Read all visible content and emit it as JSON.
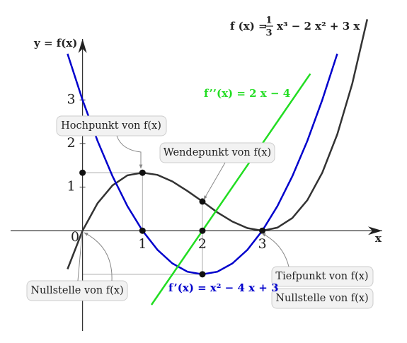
{
  "chart_data": {
    "type": "line",
    "xlabel": "x",
    "ylabel": "y = f(x)",
    "xlim": [
      -1.2,
      5.0
    ],
    "ylim": [
      -2.3,
      4.4
    ],
    "xticks": [
      0,
      1,
      2,
      3
    ],
    "yticks": [
      1,
      2,
      3
    ],
    "series": [
      {
        "name": "f (x) =",
        "formula": {
          "numerator": "1",
          "denominator": "3",
          "rest": "x³ − 2 x²  + 3 x"
        },
        "color": "#333333",
        "x": [
          -0.25,
          0,
          0.25,
          0.5,
          0.75,
          1,
          1.25,
          1.5,
          1.75,
          2,
          2.25,
          2.5,
          2.75,
          3,
          3.25,
          3.5,
          3.75,
          4,
          4.25,
          4.5,
          4.75
        ],
        "values": [
          -0.88,
          0,
          0.63,
          1.04,
          1.27,
          1.33,
          1.28,
          1.13,
          0.91,
          0.67,
          0.42,
          0.21,
          0.06,
          0,
          0.07,
          0.29,
          0.7,
          1.33,
          2.21,
          3.375,
          4.85
        ]
      },
      {
        "name": "f’(x) = x² − 4 x + 3",
        "color": "#0000cc",
        "x": [
          -0.25,
          0,
          0.25,
          0.5,
          0.75,
          1,
          1.25,
          1.5,
          1.75,
          2,
          2.25,
          2.5,
          2.75,
          3,
          3.25,
          3.5,
          3.75,
          4,
          4.25
        ],
        "values": [
          4.06,
          3,
          2.06,
          1.25,
          0.56,
          0,
          -0.44,
          -0.75,
          -0.94,
          -1,
          -0.94,
          -0.75,
          -0.44,
          0,
          0.56,
          1.25,
          2.06,
          3,
          4.06
        ]
      },
      {
        "name": "f’’(x) = 2 x − 4",
        "color": "#22dd22",
        "x": [
          1.15,
          3.8
        ],
        "values": [
          -1.7,
          3.6
        ]
      }
    ],
    "points": {
      "x": [
        0,
        1,
        1,
        2,
        2,
        3,
        2
      ],
      "values": [
        1.33,
        1.33,
        0,
        0.67,
        0,
        0,
        -1
      ],
      "color": "#111111"
    },
    "annotations": [
      "Hochpunkt von f(x)",
      "Wendepunkt von f(x)",
      "Nullstelle von f(x)",
      "Tiefpunkt von f(x)",
      "Nullstelle von f(x)"
    ]
  }
}
